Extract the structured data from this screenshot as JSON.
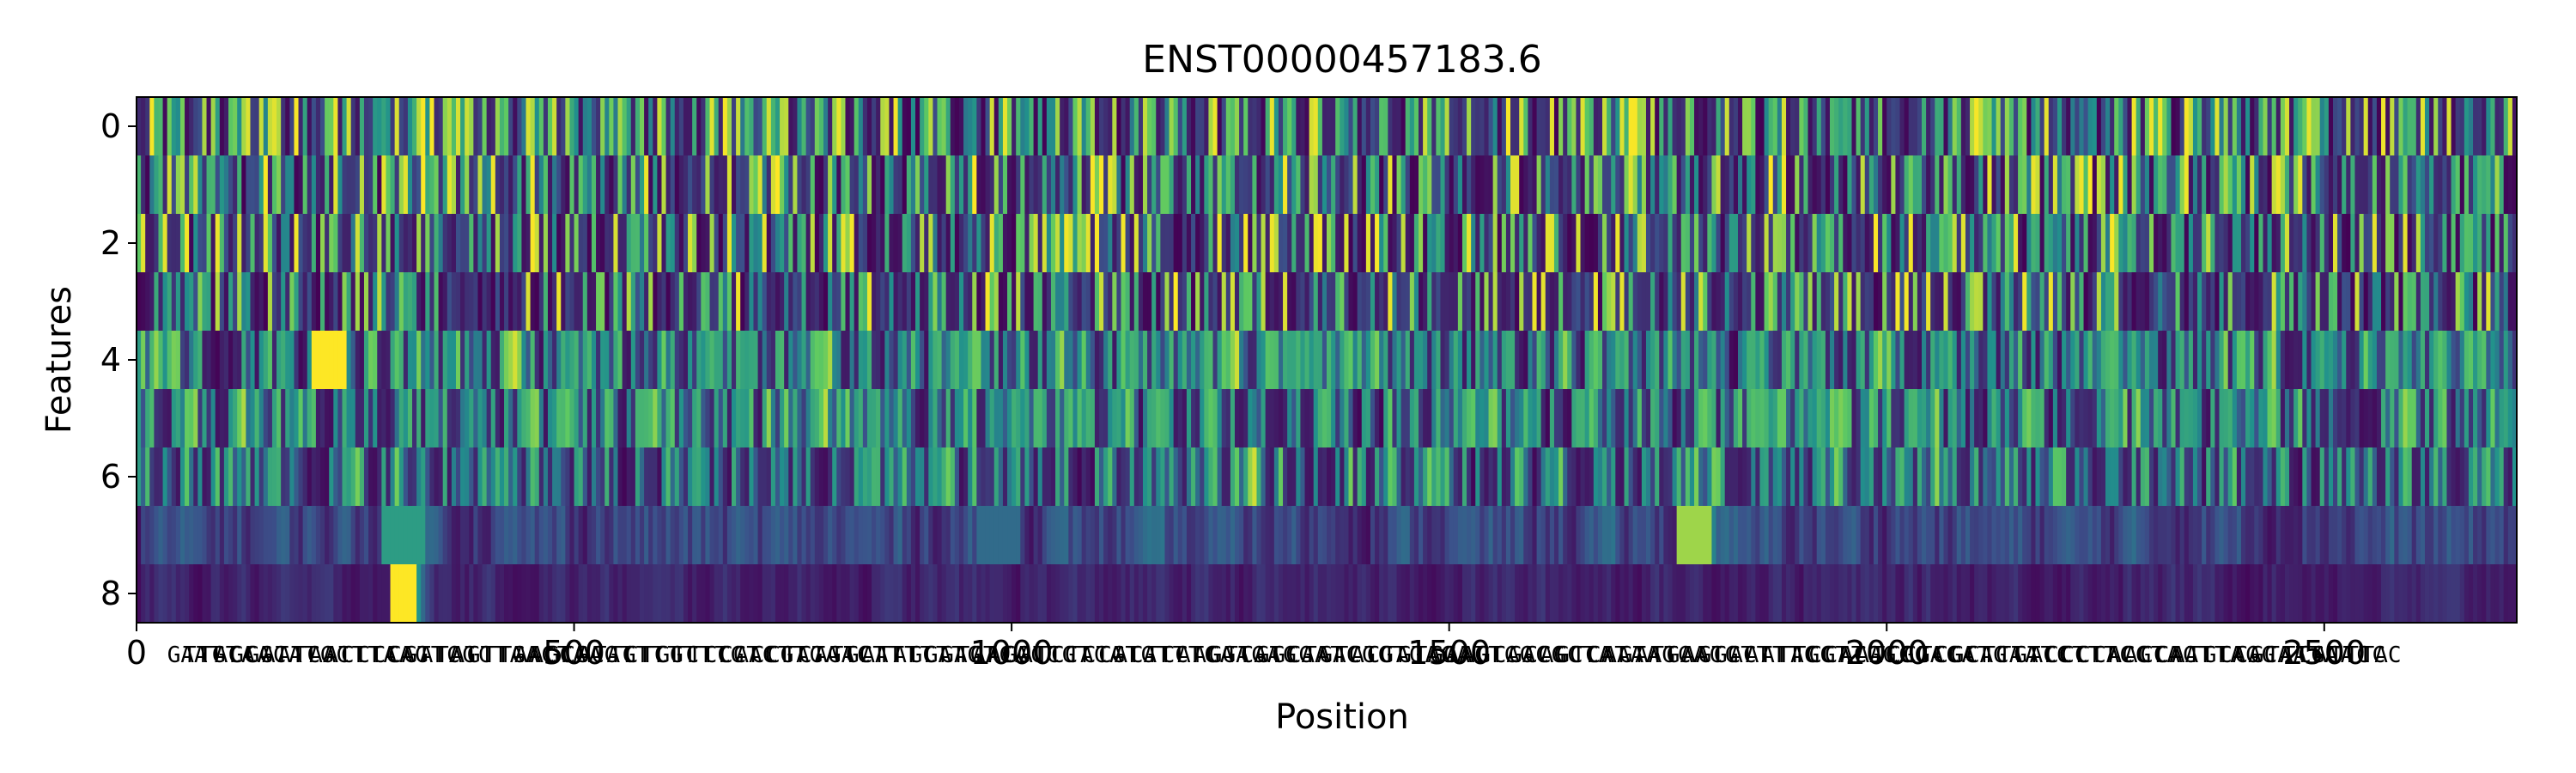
{
  "chart_data": {
    "type": "heatmap",
    "title": "ENST00000457183.6",
    "xlabel": "Position",
    "ylabel": "Features",
    "xlim": [
      0,
      2720
    ],
    "ylim": [
      8.5,
      -0.5
    ],
    "x_ticks": [
      0,
      500,
      1000,
      1500,
      2000,
      2500
    ],
    "x_tick_labels": [
      "0",
      "500",
      "1000",
      "1500",
      "2000",
      "2500"
    ],
    "y_ticks": [
      0,
      2,
      4,
      6,
      8
    ],
    "y_tick_labels": [
      "0",
      "2",
      "4",
      "6",
      "8"
    ],
    "rows": 9,
    "colormap": "viridis",
    "colormap_stops": [
      "#440154",
      "#3b528b",
      "#21918c",
      "#5ec962",
      "#fde725"
    ],
    "value_range": [
      0,
      1
    ],
    "grid": false,
    "row_profiles": [
      {
        "feature": 0,
        "mean_intensity": 0.4,
        "activity": "dense high-frequency stripes"
      },
      {
        "feature": 1,
        "mean_intensity": 0.35,
        "activity": "dense high-frequency stripes"
      },
      {
        "feature": 2,
        "mean_intensity": 0.33,
        "activity": "dense high-frequency stripes"
      },
      {
        "feature": 3,
        "mean_intensity": 0.3,
        "activity": "frequent stripes"
      },
      {
        "feature": 4,
        "mean_intensity": 0.5,
        "activity": "frequent bright bands"
      },
      {
        "feature": 5,
        "mean_intensity": 0.45,
        "activity": "frequent bright bands"
      },
      {
        "feature": 6,
        "mean_intensity": 0.4,
        "activity": "intermittent bright bands"
      },
      {
        "feature": 7,
        "mean_intensity": 0.12,
        "activity": "mostly low, diffuse patches"
      },
      {
        "feature": 8,
        "mean_intensity": 0.06,
        "activity": "mostly low"
      }
    ],
    "highlights": [
      {
        "feature": 8,
        "x_range": [
          290,
          320
        ],
        "value": 1.0
      },
      {
        "feature": 7,
        "x_range": [
          280,
          330
        ],
        "value": 0.55
      },
      {
        "feature": 7,
        "x_range": [
          1760,
          1800
        ],
        "value": 0.85
      },
      {
        "feature": 4,
        "x_range": [
          200,
          240
        ],
        "value": 1.0
      },
      {
        "feature": 7,
        "x_range": [
          960,
          1010
        ],
        "value": 0.35
      }
    ]
  }
}
